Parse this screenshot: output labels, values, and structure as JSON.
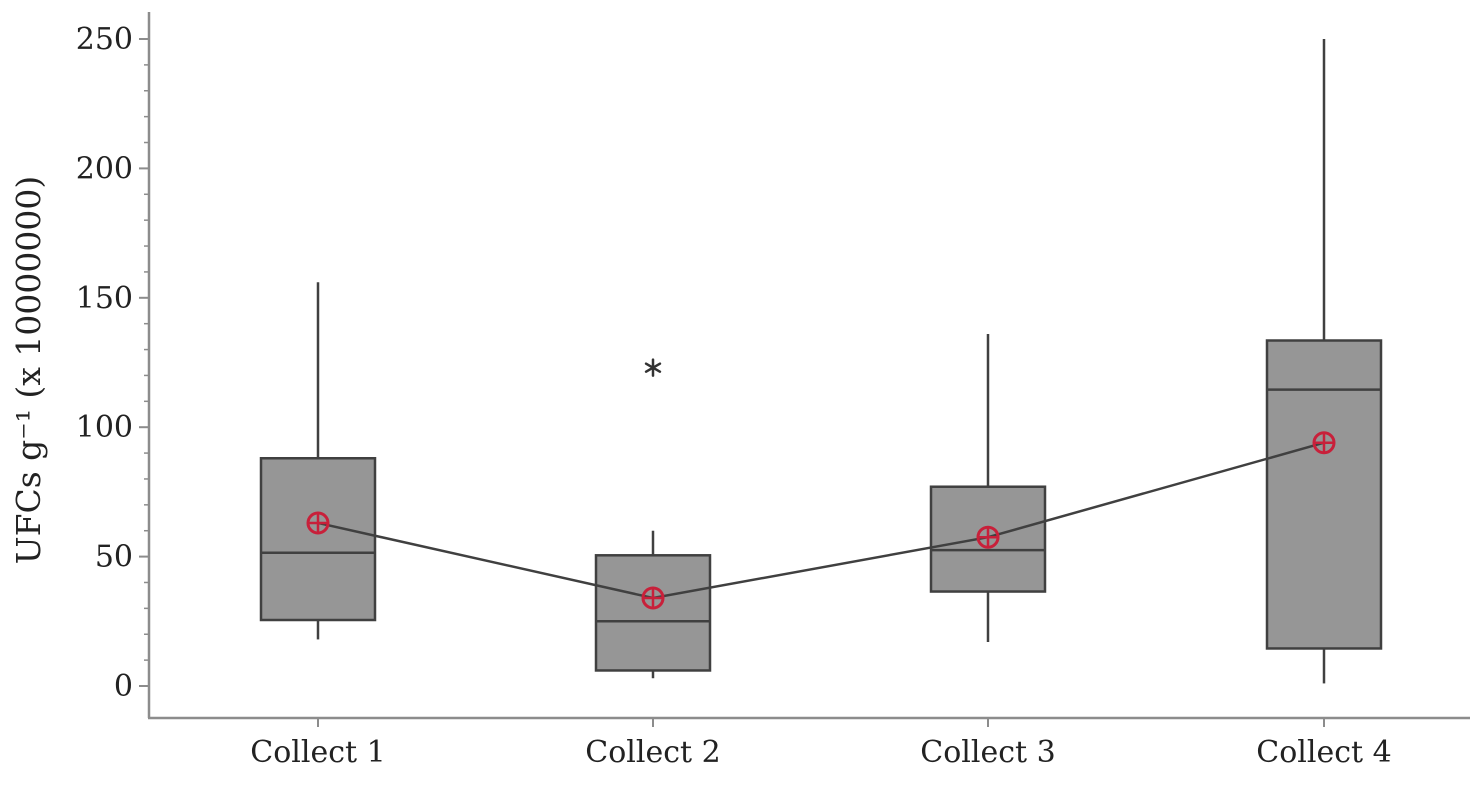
{
  "chart_data": {
    "type": "boxplot",
    "title": "",
    "xlabel": "",
    "ylabel": "UFCs g⁻¹ (x 10000000)",
    "ylim": [
      0,
      250
    ],
    "yticks": [
      0,
      50,
      100,
      150,
      200,
      250
    ],
    "grid": false,
    "legend": "none",
    "categories": [
      "Collect 1",
      "Collect 2",
      "Collect 3",
      "Collect 4"
    ],
    "boxes": [
      {
        "category": "Collect 1",
        "min": 18,
        "q1": 25.5,
        "median": 51.5,
        "q3": 88,
        "max": 156,
        "mean": 63,
        "outliers": []
      },
      {
        "category": "Collect 2",
        "min": 3,
        "q1": 6,
        "median": 25,
        "q3": 50.5,
        "max": 60,
        "mean": 34,
        "outliers": [
          123
        ]
      },
      {
        "category": "Collect 3",
        "min": 17,
        "q1": 36.5,
        "median": 52.5,
        "q3": 77,
        "max": 136,
        "mean": 57.5,
        "outliers": []
      },
      {
        "category": "Collect 4",
        "min": 1,
        "q1": 14.5,
        "median": 114.5,
        "q3": 133.5,
        "max": 250,
        "mean": 94,
        "outliers": []
      }
    ],
    "colors": {
      "box_fill": "#969696",
      "box_stroke": "#404040",
      "mean_marker": "#c8203a",
      "mean_line": "#404040",
      "axis": "#8c8c8c"
    }
  }
}
